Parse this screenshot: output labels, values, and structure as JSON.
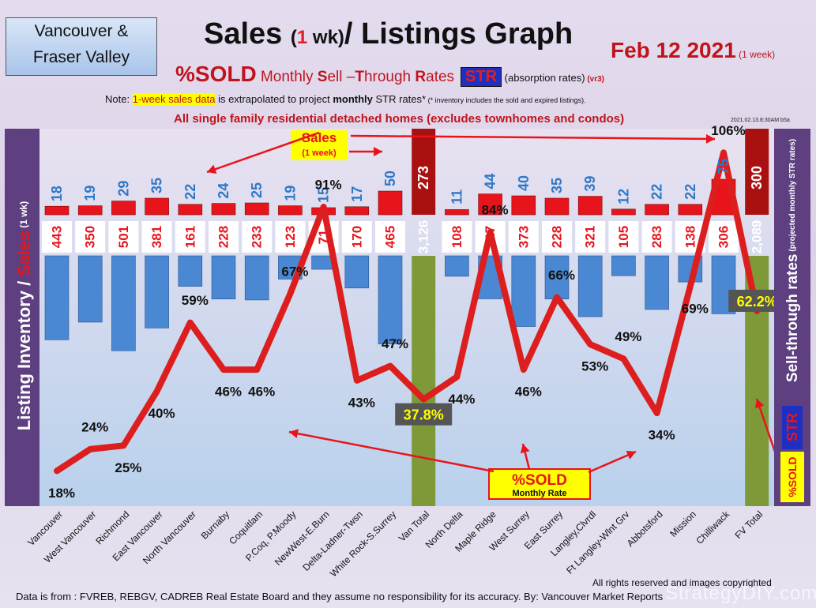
{
  "header": {
    "region_line1": "Vancouver &",
    "region_line2": "Fraser Valley",
    "title_a": "Sales ",
    "title_paren_open": "(",
    "title_one": "1",
    "title_wk": " wk)",
    "title_b": "/ Listings Graph",
    "date": "Feb 12  2021",
    "date_note": " (1 week)",
    "sub_sold": "%SOLD",
    "sub_rates_1": " Monthly ",
    "sub_S": "S",
    "sub_rates_2": "ell –",
    "sub_T": "T",
    "sub_rates_3": "hrough ",
    "sub_R": "R",
    "sub_rates_4": "ates",
    "str": "STR",
    "absorb": " (absorption rates)",
    "version": " (vr3)",
    "note_prefix": "Note: ",
    "note_hl": "1-week sales data",
    "note_mid": " is extrapolated to project ",
    "note_bold": "monthly",
    "note_end": " STR rates*",
    "note_small": " (* inventory includes the sold and expired listings).",
    "note2": "All single family residential detached homes (excludes townhomes and condos)",
    "stamp": "2021.02.13.8:30AM b5a"
  },
  "annotations": {
    "sales_label": "Sales",
    "sales_sub": "(1 week)",
    "sold_label": "%SOLD",
    "sold_sub": "Monthly Rate",
    "left_axis_a": "Listing Inventory ",
    "left_axis_sep": "/ ",
    "left_axis_b": "Sales",
    "left_axis_c": " (1 wk)",
    "right_axis_a": "Sell-through rates",
    "right_axis_b": " (projected monthly STR rates)",
    "right_str": "STR",
    "right_sold": "%SOLD"
  },
  "footer": {
    "source": "Data is from : FVREB, REBGV, CADREB Real Estate Board and they assume no responsibility for its accuracy. By: Vancouver Market Reports",
    "copyright": "All rights reserved and  images copyrighted",
    "watermark": "StrategyDIY.com"
  },
  "colors": {
    "sales": "#e8141c",
    "sales_total": "#a8110f",
    "listings": "#4a88d4",
    "total_column": "#7e9a38",
    "str_line": "#dd1e1e",
    "str_label_total_bg": "#555555",
    "str_label_total_text": "#ffff00"
  },
  "chart_data": {
    "type": "bar",
    "title": "Sales (1 wk)/ Listings Graph",
    "categories": [
      "Vancouver",
      "West Vancouver",
      "Richmond",
      "East Vancouver",
      "North Vancouver",
      "Burnaby",
      "Coquitlam",
      "P.Coq, P.Moody",
      "NewWest-E.Burn",
      "Delta-Ladner-Twsn",
      "White Rock-S.Surrey",
      "Van Total",
      "North Delta",
      "Maple Ridge",
      "West Surrey",
      "East Surrey",
      "Langley,Clvrdl",
      "Ft Langley-Wlnt Grv",
      "Abbotsford",
      "Mission",
      "Chilliwack",
      "FV Total"
    ],
    "series": [
      {
        "name": "Sales",
        "values": [
          18,
          19,
          29,
          35,
          22,
          24,
          25,
          19,
          15,
          17,
          50,
          273,
          11,
          44,
          40,
          35,
          39,
          12,
          22,
          22,
          75,
          300
        ],
        "labels": [
          "18",
          "19",
          "29",
          "35",
          "22",
          "24",
          "25",
          "19",
          "15",
          "17",
          "50",
          "273",
          "11",
          "44",
          "40",
          "35",
          "39",
          "12",
          "22",
          "22",
          "75",
          "300"
        ]
      },
      {
        "name": "Listing Inventory",
        "values": [
          443,
          350,
          501,
          381,
          161,
          228,
          233,
          123,
          71,
          170,
          465,
          3126,
          108,
          227,
          373,
          228,
          321,
          105,
          283,
          138,
          306,
          2089
        ],
        "labels": [
          "443",
          "350",
          "501",
          "381",
          "161",
          "228",
          "233",
          "123",
          "71",
          "170",
          "465",
          "3,126",
          "108",
          "227",
          "373",
          "228",
          "321",
          "105",
          "283",
          "138",
          "306",
          "2,089"
        ]
      },
      {
        "name": "STR",
        "values": [
          18,
          24,
          25,
          40,
          59,
          46,
          46,
          67,
          91,
          43,
          47,
          37.8,
          44,
          84,
          46,
          66,
          53,
          49,
          34,
          69,
          106,
          62.2
        ],
        "labels": [
          "18%",
          "24%",
          "25%",
          "40%",
          "59%",
          "46%",
          "46%",
          "67%",
          "91%",
          "43%",
          "47%",
          "37.8%",
          "44%",
          "84%",
          "46%",
          "66%",
          "53%",
          "49%",
          "34%",
          "69%",
          "106%",
          "62.2%"
        ]
      }
    ],
    "totals": [
      "Van Total",
      "FV Total"
    ],
    "ylabel": "Listing Inventory / Sales (1 wk)",
    "y2label": "Sell-through rates (projected monthly STR rates)"
  }
}
